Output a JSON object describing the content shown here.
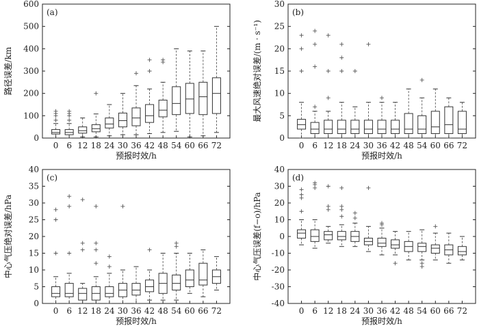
{
  "chart_data": [
    {
      "type": "box",
      "panel_label": "(a)",
      "xlabel": "预报时效/h",
      "ylabel": "路径误差/km",
      "categories": [
        "0",
        "6",
        "12",
        "18",
        "24",
        "30",
        "36",
        "42",
        "48",
        "54",
        "60",
        "66",
        "72"
      ],
      "ylim": [
        0,
        600
      ],
      "yticks": [
        0,
        100,
        200,
        300,
        400,
        500,
        600
      ],
      "boxes": [
        {
          "whisker_low": 0,
          "q1": 18,
          "median": 25,
          "q3": 38,
          "whisker_high": 65,
          "outliers": [
            80,
            100,
            110,
            120
          ]
        },
        {
          "whisker_low": 0,
          "q1": 15,
          "median": 25,
          "q3": 38,
          "whisker_high": 65,
          "outliers": [
            80,
            100,
            110,
            120
          ]
        },
        {
          "whisker_low": 5,
          "q1": 22,
          "median": 33,
          "q3": 50,
          "whisker_high": 90,
          "outliers": []
        },
        {
          "whisker_low": 5,
          "q1": 28,
          "median": 42,
          "q3": 60,
          "whisker_high": 108,
          "outliers": [
            200
          ]
        },
        {
          "whisker_low": 10,
          "q1": 45,
          "median": 63,
          "q3": 90,
          "whisker_high": 150,
          "outliers": []
        },
        {
          "whisker_low": 15,
          "q1": 50,
          "median": 78,
          "q3": 112,
          "whisker_high": 200,
          "outliers": []
        },
        {
          "whisker_low": 15,
          "q1": 55,
          "median": 90,
          "q3": 135,
          "whisker_high": 235,
          "outliers": [
            290
          ]
        },
        {
          "whisker_low": 20,
          "q1": 70,
          "median": 100,
          "q3": 150,
          "whisker_high": 220,
          "outliers": [
            300,
            350
          ]
        },
        {
          "whisker_low": 25,
          "q1": 95,
          "median": 125,
          "q3": 170,
          "whisker_high": 250,
          "outliers": [
            340,
            350
          ]
        },
        {
          "whisker_low": 30,
          "q1": 105,
          "median": 155,
          "q3": 230,
          "whisker_high": 400,
          "outliers": []
        },
        {
          "whisker_low": 5,
          "q1": 110,
          "median": 175,
          "q3": 245,
          "whisker_high": 390,
          "outliers": []
        },
        {
          "whisker_low": 10,
          "q1": 105,
          "median": 185,
          "q3": 250,
          "whisker_high": 390,
          "outliers": []
        },
        {
          "whisker_low": 25,
          "q1": 110,
          "median": 200,
          "q3": 270,
          "whisker_high": 500,
          "outliers": []
        }
      ]
    },
    {
      "type": "box",
      "panel_label": "(b)",
      "xlabel": "预报时效/h",
      "ylabel": "最大风速绝对误差/(m · s⁻¹)",
      "categories": [
        "0",
        "6",
        "12",
        "18",
        "24",
        "30",
        "36",
        "42",
        "48",
        "54",
        "60",
        "66",
        "72"
      ],
      "ylim": [
        0,
        30
      ],
      "yticks": [
        0,
        5,
        10,
        15,
        20,
        25,
        30
      ],
      "boxes": [
        {
          "whisker_low": 0,
          "q1": 2,
          "median": 3,
          "q3": 4.2,
          "whisker_high": 8,
          "outliers": [
            15,
            20,
            23
          ]
        },
        {
          "whisker_low": 0,
          "q1": 1,
          "median": 2,
          "q3": 3.5,
          "whisker_high": 6,
          "outliers": [
            7,
            16,
            21,
            24
          ]
        },
        {
          "whisker_low": 0,
          "q1": 1,
          "median": 2,
          "q3": 4,
          "whisker_high": 6,
          "outliers": [
            9,
            15,
            23
          ]
        },
        {
          "whisker_low": 0,
          "q1": 1,
          "median": 2,
          "q3": 4,
          "whisker_high": 8,
          "outliers": [
            15,
            18,
            21
          ]
        },
        {
          "whisker_low": 0,
          "q1": 1,
          "median": 2,
          "q3": 4,
          "whisker_high": 7,
          "outliers": [
            15
          ]
        },
        {
          "whisker_low": 0,
          "q1": 1,
          "median": 2,
          "q3": 4,
          "whisker_high": 8,
          "outliers": [
            21
          ]
        },
        {
          "whisker_low": 0,
          "q1": 1,
          "median": 2,
          "q3": 4,
          "whisker_high": 8,
          "outliers": [
            9
          ]
        },
        {
          "whisker_low": 0,
          "q1": 1,
          "median": 2,
          "q3": 4,
          "whisker_high": 8,
          "outliers": []
        },
        {
          "whisker_low": 0,
          "q1": 1,
          "median": 2,
          "q3": 5.5,
          "whisker_high": 11,
          "outliers": []
        },
        {
          "whisker_low": 0,
          "q1": 1,
          "median": 2,
          "q3": 5,
          "whisker_high": 9,
          "outliers": [
            13
          ]
        },
        {
          "whisker_low": 0,
          "q1": 1,
          "median": 2.5,
          "q3": 6,
          "whisker_high": 11,
          "outliers": []
        },
        {
          "whisker_low": 0,
          "q1": 1,
          "median": 3,
          "q3": 7,
          "whisker_high": 9,
          "outliers": []
        },
        {
          "whisker_low": 0,
          "q1": 1,
          "median": 2,
          "q3": 6,
          "whisker_high": 8,
          "outliers": []
        }
      ]
    },
    {
      "type": "box",
      "panel_label": "(c)",
      "xlabel": "预报时效/h",
      "ylabel": "中心气压绝对误差/hPa",
      "categories": [
        "0",
        "6",
        "12",
        "18",
        "24",
        "30",
        "36",
        "42",
        "48",
        "54",
        "60",
        "66",
        "72"
      ],
      "ylim": [
        0,
        40
      ],
      "yticks": [
        0,
        5,
        10,
        15,
        20,
        25,
        30,
        35,
        40
      ],
      "boxes": [
        {
          "whisker_low": 0,
          "q1": 2,
          "median": 3,
          "q3": 5,
          "whisker_high": 8,
          "outliers": [
            15,
            25,
            28
          ]
        },
        {
          "whisker_low": 0,
          "q1": 2,
          "median": 3,
          "q3": 6,
          "whisker_high": 9,
          "outliers": [
            15,
            29,
            32
          ]
        },
        {
          "whisker_low": 0,
          "q1": 1,
          "median": 3,
          "q3": 4.5,
          "whisker_high": 6,
          "outliers": [
            16,
            18,
            31
          ]
        },
        {
          "whisker_low": 0,
          "q1": 1,
          "median": 3,
          "q3": 5,
          "whisker_high": 8,
          "outliers": [
            12,
            16,
            18,
            29
          ]
        },
        {
          "whisker_low": 0,
          "q1": 2,
          "median": 3,
          "q3": 5,
          "whisker_high": 9,
          "outliers": [
            11,
            14
          ]
        },
        {
          "whisker_low": 0,
          "q1": 2,
          "median": 4,
          "q3": 6,
          "whisker_high": 10,
          "outliers": [
            29
          ]
        },
        {
          "whisker_low": 0,
          "q1": 2.5,
          "median": 4,
          "q3": 6,
          "whisker_high": 11,
          "outliers": []
        },
        {
          "whisker_low": 1,
          "q1": 3.5,
          "median": 5,
          "q3": 7,
          "whisker_high": 10,
          "outliers": [
            16
          ]
        },
        {
          "whisker_low": 1,
          "q1": 3,
          "median": 6,
          "q3": 9,
          "whisker_high": 15,
          "outliers": []
        },
        {
          "whisker_low": 1,
          "q1": 4,
          "median": 6,
          "q3": 8.5,
          "whisker_high": 15,
          "outliers": [
            17,
            18
          ]
        },
        {
          "whisker_low": 3,
          "q1": 5,
          "median": 7,
          "q3": 10,
          "whisker_high": 15,
          "outliers": []
        },
        {
          "whisker_low": 2,
          "q1": 5.5,
          "median": 7,
          "q3": 12,
          "whisker_high": 16,
          "outliers": []
        },
        {
          "whisker_low": 4,
          "q1": 6,
          "median": 8,
          "q3": 10,
          "whisker_high": 14,
          "outliers": []
        }
      ]
    },
    {
      "type": "box",
      "panel_label": "(d)",
      "xlabel": "预报时效/h",
      "ylabel": "中心气压误差(f−o)/hPa",
      "categories": [
        "0",
        "6",
        "12",
        "18",
        "24",
        "30",
        "36",
        "42",
        "48",
        "54",
        "60",
        "66",
        "72"
      ],
      "ylim": [
        -40,
        40
      ],
      "yticks": [
        -40,
        -30,
        -20,
        -10,
        0,
        10,
        20,
        30,
        40
      ],
      "boxes": [
        {
          "whisker_low": -5,
          "q1": -1,
          "median": 2,
          "q3": 4,
          "whisker_high": 10,
          "outliers": [
            15,
            23,
            25,
            28
          ]
        },
        {
          "whisker_low": -7,
          "q1": -3,
          "median": 0,
          "q3": 4,
          "whisker_high": 10,
          "outliers": [
            29,
            31,
            32
          ]
        },
        {
          "whisker_low": -4,
          "q1": -2,
          "median": 1,
          "q3": 3,
          "whisker_high": 6,
          "outliers": [
            16,
            18,
            30
          ]
        },
        {
          "whisker_low": -6,
          "q1": -2,
          "median": 0,
          "q3": 3,
          "whisker_high": 7,
          "outliers": [
            12,
            16,
            18,
            29
          ]
        },
        {
          "whisker_low": -6,
          "q1": -3,
          "median": 0,
          "q3": 3,
          "whisker_high": 8,
          "outliers": [
            11,
            14
          ]
        },
        {
          "whisker_low": -9,
          "q1": -5,
          "median": -3,
          "q3": -1,
          "whisker_high": 6,
          "outliers": [
            29
          ]
        },
        {
          "whisker_low": -11,
          "q1": -6,
          "median": -4,
          "q3": -1,
          "whisker_high": 5,
          "outliers": [
            7,
            8
          ]
        },
        {
          "whisker_low": -11,
          "q1": -7,
          "median": -5,
          "q3": -2,
          "whisker_high": 3,
          "outliers": [
            -16
          ]
        },
        {
          "whisker_low": -14,
          "q1": -9,
          "median": -6,
          "q3": -3,
          "whisker_high": 3,
          "outliers": []
        },
        {
          "whisker_low": -14,
          "q1": -9,
          "median": -6,
          "q3": -4,
          "whisker_high": 4,
          "outliers": [
            -16,
            -18
          ]
        },
        {
          "whisker_low": -14,
          "q1": -10,
          "median": -7,
          "q3": -5,
          "whisker_high": 2,
          "outliers": [
            6
          ]
        },
        {
          "whisker_low": -16,
          "q1": -11,
          "median": -8,
          "q3": -5,
          "whisker_high": 2,
          "outliers": []
        },
        {
          "whisker_low": -14,
          "q1": -11,
          "median": -9,
          "q3": -6,
          "whisker_high": 0,
          "outliers": []
        }
      ]
    }
  ]
}
